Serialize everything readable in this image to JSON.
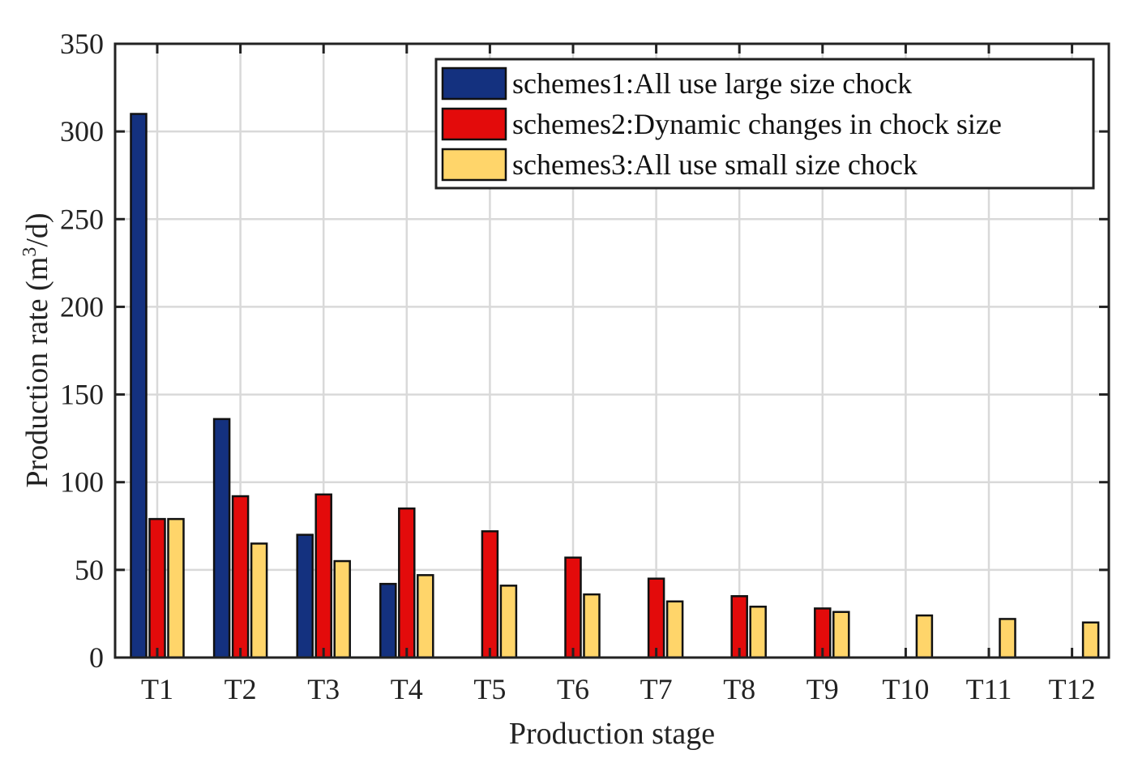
{
  "chart_data": {
    "type": "bar",
    "title": "",
    "xlabel": "Production stage",
    "ylabel_main": "Production rate (m",
    "ylabel_sup": "3",
    "ylabel_tail": "/d)",
    "ylim": [
      0,
      350
    ],
    "yticks": [
      "0",
      "50",
      "100",
      "150",
      "200",
      "250",
      "300",
      "350"
    ],
    "grid": true,
    "legend_position": "top-right",
    "categories": [
      "T1",
      "T2",
      "T3",
      "T4",
      "T5",
      "T6",
      "T7",
      "T8",
      "T9",
      "T10",
      "T11",
      "T12"
    ],
    "series": [
      {
        "name": "schemes1:All use large size chock",
        "color": "#14317f",
        "values": [
          310,
          136,
          70,
          42,
          0,
          0,
          0,
          0,
          0,
          0,
          0,
          0
        ]
      },
      {
        "name": "schemes2:Dynamic changes in chock size",
        "color": "#e30b0b",
        "values": [
          79,
          92,
          93,
          85,
          72,
          57,
          45,
          35,
          28,
          0,
          0,
          0
        ]
      },
      {
        "name": "schemes3:All use small size chock",
        "color": "#ffd56a",
        "values": [
          79,
          65,
          55,
          47,
          41,
          36,
          32,
          29,
          26,
          24,
          22,
          20
        ]
      }
    ]
  }
}
